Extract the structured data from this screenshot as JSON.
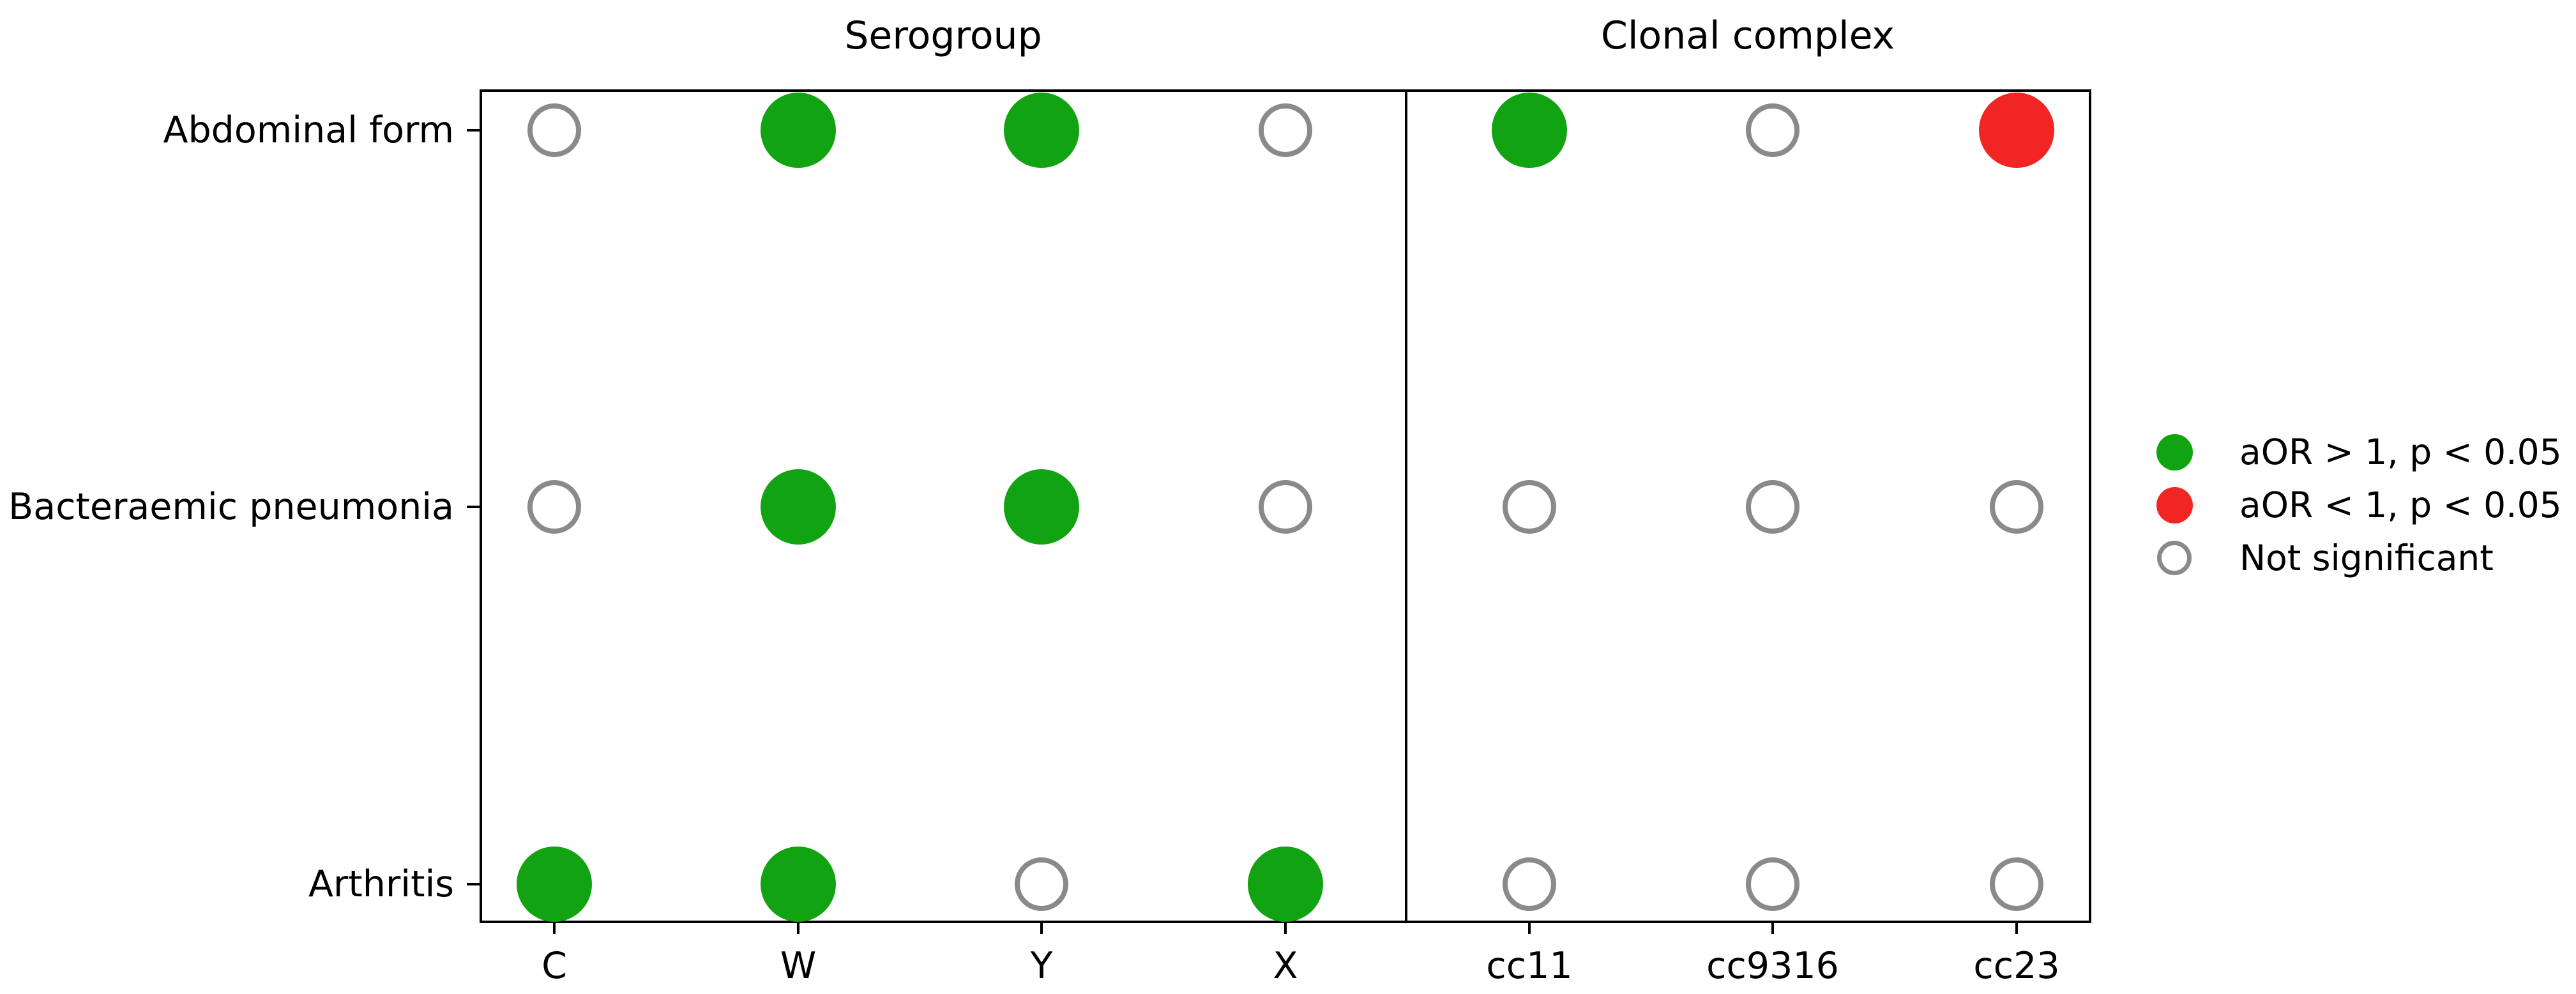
{
  "chart_data": {
    "type": "scatter",
    "subtype": "categorical-dot-matrix",
    "panels": [
      {
        "title": "Serogroup",
        "categories": [
          "C",
          "W",
          "Y",
          "X"
        ]
      },
      {
        "title": "Clonal complex",
        "categories": [
          "cc11",
          "cc9316",
          "cc23"
        ]
      }
    ],
    "columns": [
      "C",
      "W",
      "Y",
      "X",
      "cc11",
      "cc9316",
      "cc23"
    ],
    "rows": [
      "Abdominal form",
      "Bacteraemic pneumonia",
      "Arthritis"
    ],
    "cells": [
      [
        "not_significant",
        "aOR>1",
        "aOR>1",
        "not_significant",
        "aOR>1",
        "not_significant",
        "aOR<1"
      ],
      [
        "not_significant",
        "aOR>1",
        "aOR>1",
        "not_significant",
        "not_significant",
        "not_significant",
        "not_significant"
      ],
      [
        "aOR>1",
        "aOR>1",
        "not_significant",
        "aOR>1",
        "not_significant",
        "not_significant",
        "not_significant"
      ]
    ],
    "status_styles": {
      "aOR>1": {
        "marker": "filled",
        "color": "#12a312"
      },
      "aOR<1": {
        "marker": "filled",
        "color": "#f22525"
      },
      "not_significant": {
        "marker": "open",
        "color": "#8a8a8a"
      }
    },
    "legend": [
      {
        "label": "aOR > 1, p < 0.05",
        "marker": "filled",
        "color": "#12a312"
      },
      {
        "label": "aOR < 1, p < 0.05",
        "marker": "filled",
        "color": "#f22525"
      },
      {
        "label": "Not significant",
        "marker": "open",
        "color": "#8a8a8a"
      }
    ],
    "legend_position": "right",
    "grid": "off",
    "axis_color": "#000000",
    "background_color": "#ffffff"
  }
}
